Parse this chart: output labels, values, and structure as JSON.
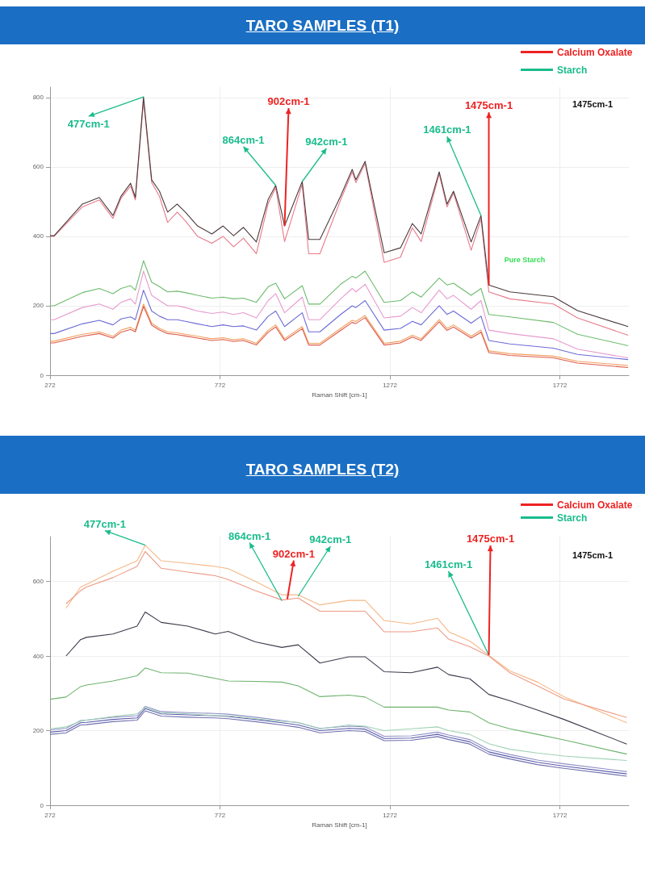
{
  "chart_data": [
    {
      "type": "line",
      "title": "TARO SAMPLES (T1)",
      "xlabel": "Raman Shift [cm-1]",
      "xlim": [
        272,
        1975
      ],
      "xticks": [
        272,
        772,
        1272,
        1772
      ],
      "ylim": [
        0,
        830
      ],
      "yticks": [
        0,
        200,
        400,
        600,
        800
      ],
      "grid": true,
      "marker": "none",
      "line_style": "solid",
      "x": [
        272,
        284,
        367,
        417,
        457,
        481,
        509,
        523,
        547,
        571,
        594,
        618,
        646,
        670,
        706,
        748,
        781,
        812,
        841,
        879,
        914,
        936,
        962,
        1014,
        1033,
        1066,
        1127,
        1161,
        1172,
        1199,
        1255,
        1303,
        1338,
        1364,
        1417,
        1440,
        1459,
        1511,
        1540,
        1563,
        1625,
        1753,
        1824,
        1973
      ],
      "series": [
        {
          "color": "#6b6bd6",
          "values": [
            120,
            120,
            148,
            158,
            145,
            162,
            168,
            160,
            245,
            185,
            170,
            160,
            160,
            155,
            148,
            140,
            145,
            140,
            142,
            130,
            170,
            185,
            140,
            180,
            125,
            125,
            175,
            200,
            195,
            215,
            130,
            135,
            155,
            145,
            200,
            175,
            185,
            150,
            170,
            100,
            90,
            78,
            60,
            45
          ]
        },
        {
          "color": "#6dbb6d",
          "values": [
            200,
            200,
            238,
            250,
            235,
            250,
            258,
            245,
            330,
            268,
            255,
            240,
            242,
            238,
            230,
            222,
            225,
            220,
            222,
            210,
            255,
            265,
            220,
            258,
            205,
            205,
            262,
            285,
            280,
            300,
            210,
            215,
            240,
            225,
            280,
            260,
            265,
            230,
            250,
            175,
            168,
            152,
            118,
            85
          ]
        },
        {
          "color": "#f0a060",
          "values": [
            98,
            98,
            118,
            125,
            112,
            130,
            138,
            130,
            205,
            150,
            135,
            125,
            122,
            118,
            112,
            105,
            108,
            102,
            105,
            92,
            130,
            145,
            105,
            140,
            92,
            92,
            135,
            158,
            155,
            172,
            92,
            98,
            115,
            105,
            160,
            135,
            145,
            112,
            130,
            70,
            62,
            55,
            40,
            28
          ]
        },
        {
          "color": "#e05a4a",
          "values": [
            93,
            93,
            112,
            120,
            107,
            124,
            132,
            125,
            198,
            144,
            130,
            120,
            117,
            113,
            107,
            100,
            103,
            97,
            100,
            87,
            124,
            139,
            100,
            134,
            87,
            87,
            129,
            152,
            149,
            166,
            87,
            93,
            110,
            100,
            154,
            129,
            139,
            107,
            124,
            65,
            57,
            50,
            35,
            22
          ]
        },
        {
          "color": "#e89ad0",
          "values": [
            160,
            160,
            195,
            205,
            190,
            210,
            220,
            205,
            300,
            230,
            215,
            200,
            200,
            195,
            185,
            178,
            182,
            175,
            180,
            165,
            215,
            235,
            180,
            225,
            160,
            160,
            220,
            250,
            240,
            262,
            165,
            170,
            195,
            180,
            245,
            220,
            230,
            190,
            215,
            130,
            120,
            105,
            75,
            50
          ]
        },
        {
          "color": "#e87a8a",
          "values": [
            400,
            400,
            485,
            505,
            452,
            510,
            545,
            505,
            790,
            555,
            515,
            440,
            470,
            445,
            400,
            380,
            400,
            370,
            395,
            350,
            495,
            540,
            385,
            550,
            350,
            350,
            505,
            585,
            555,
            610,
            325,
            340,
            425,
            385,
            580,
            485,
            525,
            360,
            450,
            240,
            220,
            205,
            165,
            115
          ]
        },
        {
          "color": "#4a3a3a",
          "values": [
            402,
            402,
            493,
            512,
            460,
            516,
            553,
            512,
            802,
            563,
            530,
            470,
            493,
            470,
            430,
            407,
            430,
            402,
            426,
            384,
            507,
            547,
            430,
            558,
            391,
            391,
            516,
            593,
            563,
            616,
            353,
            367,
            437,
            407,
            586,
            493,
            530,
            384,
            460,
            260,
            240,
            226,
            186,
            140
          ]
        }
      ],
      "annotations": [
        {
          "text": "477cm-1",
          "x": 547,
          "y": 802
        },
        {
          "text": "864cm-1",
          "x": 936,
          "y": 547
        },
        {
          "text": "902cm-1",
          "x": 962,
          "y": 430
        },
        {
          "text": "942cm-1",
          "x": 1014,
          "y": 558
        },
        {
          "text": "1461cm-1",
          "x": 1540,
          "y": 460
        },
        {
          "text": "1475cm-1",
          "x": 1563,
          "y": 260
        },
        "Calcium Oxalate",
        "Starch",
        "1475cm-1",
        "Pure Starch"
      ]
    },
    {
      "type": "line",
      "title": "TARO SAMPLES (T2)",
      "xlabel": "Raman Shift [cm-1]",
      "xlim": [
        272,
        1975
      ],
      "xticks": [
        272,
        772,
        1272,
        1772
      ],
      "ylim": [
        0,
        720
      ],
      "yticks": [
        0,
        200,
        400,
        600
      ],
      "grid": true,
      "marker": "none",
      "line_style": "solid",
      "x": [
        272,
        319,
        362,
        379,
        457,
        528,
        552,
        599,
        677,
        758,
        796,
        876,
        954,
        1002,
        1066,
        1151,
        1199,
        1255,
        1334,
        1412,
        1445,
        1507,
        1563,
        1625,
        1706,
        1784,
        1969
      ],
      "series": [
        {
          "color": "#3a3a4a",
          "values": [
            null,
            400,
            444,
            450,
            459,
            480,
            518,
            490,
            480,
            459,
            466,
            438,
            423,
            430,
            381,
            398,
            398,
            358,
            355,
            370,
            350,
            339,
            297,
            280,
            255,
            230,
            164
          ]
        },
        {
          "color": "#f5b886",
          "values": [
            null,
            528,
            585,
            592,
            627,
            655,
            697,
            655,
            648,
            640,
            634,
            600,
            564,
            564,
            537,
            549,
            549,
            495,
            486,
            501,
            465,
            440,
            402,
            360,
            330,
            291,
            221
          ]
        },
        {
          "color": "#ee9a86",
          "values": [
            null,
            540,
            575,
            585,
            610,
            640,
            680,
            635,
            625,
            615,
            605,
            575,
            550,
            555,
            520,
            520,
            520,
            465,
            465,
            475,
            445,
            425,
            400,
            355,
            320,
            285,
            235
          ]
        },
        {
          "color": "#5a5aa8",
          "values": [
            196,
            200,
            221,
            222,
            230,
            234,
            259,
            245,
            242,
            240,
            238,
            230,
            221,
            215,
            200,
            206,
            204,
            179,
            180,
            190,
            182,
            170,
            143,
            130,
            115,
            105,
            84
          ]
        },
        {
          "color": "#9090c8",
          "values": [
            202,
            206,
            227,
            228,
            236,
            240,
            265,
            251,
            248,
            246,
            244,
            236,
            227,
            221,
            206,
            212,
            210,
            185,
            186,
            196,
            188,
            176,
            149,
            136,
            121,
            111,
            90
          ]
        },
        {
          "color": "#9fd3b5",
          "values": [
            205,
            210,
            225,
            228,
            238,
            245,
            262,
            248,
            245,
            240,
            240,
            232,
            225,
            222,
            205,
            215,
            212,
            200,
            205,
            210,
            200,
            190,
            165,
            150,
            140,
            132,
            120
          ]
        },
        {
          "color": "#6db36d",
          "values": [
            284,
            290,
            318,
            322,
            333,
            347,
            368,
            355,
            354,
            340,
            333,
            332,
            330,
            320,
            291,
            295,
            290,
            263,
            263,
            263,
            255,
            250,
            221,
            205,
            190,
            175,
            137
          ]
        },
        {
          "color": "#7070b0",
          "values": [
            190,
            194,
            215,
            216,
            224,
            228,
            253,
            239,
            236,
            234,
            232,
            224,
            215,
            209,
            194,
            200,
            198,
            173,
            174,
            184,
            176,
            164,
            137,
            124,
            109,
            99,
            78
          ]
        }
      ],
      "annotations": [
        {
          "text": "477cm-1",
          "x": 552,
          "y": 697
        },
        {
          "text": "864cm-1",
          "x": 954,
          "y": 548
        },
        {
          "text": "902cm-1",
          "x": 970,
          "y": 552
        },
        {
          "text": "942cm-1",
          "x": 1002,
          "y": 560
        },
        {
          "text": "1461cm-1",
          "x": 1563,
          "y": 402
        },
        {
          "text": "1475cm-1",
          "x": 1563,
          "y": 402
        },
        "Calcium Oxalate",
        "Starch",
        "1475cm-1"
      ]
    }
  ]
}
